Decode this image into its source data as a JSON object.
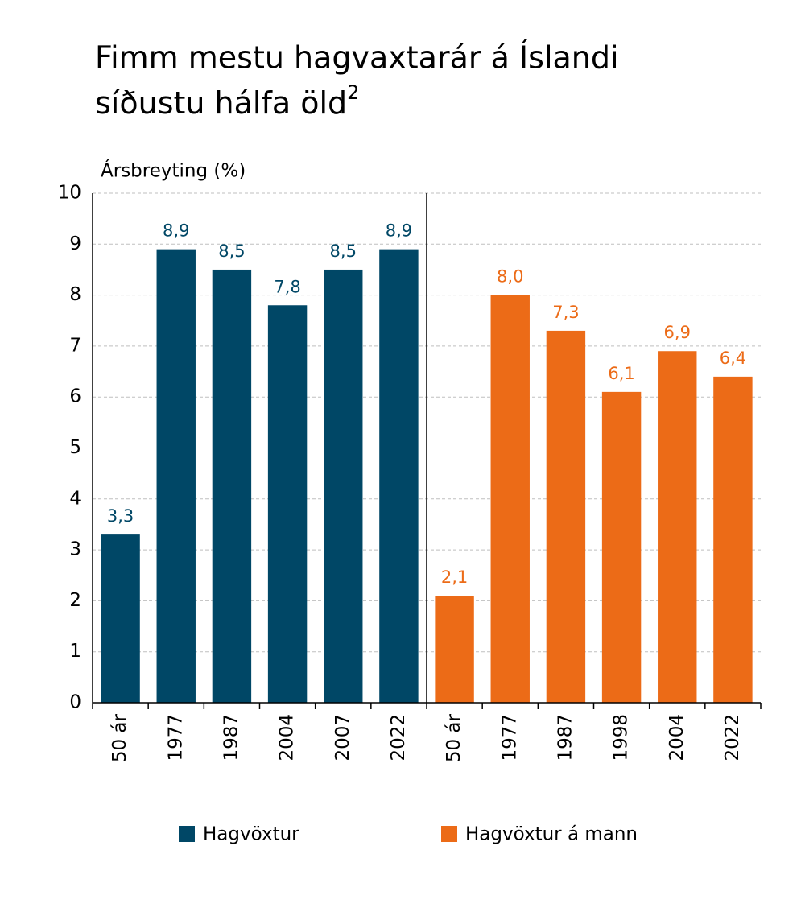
{
  "chart_data": {
    "type": "bar",
    "title": [
      "Fimm mestu hagvaxtarár á Íslandi",
      "síðustu hálfa öld"
    ],
    "title_note": "2",
    "y_label": "Ársbreyting (%)",
    "categories": [
      "50 ár",
      "1977",
      "1987",
      "2004",
      "2007",
      "2022",
      "50 ár",
      "1977",
      "1987",
      "1998",
      "2004",
      "2022"
    ],
    "series": [
      {
        "name": "Hagvöxtur",
        "color": "#004766",
        "values": [
          3.3,
          8.9,
          8.5,
          7.8,
          8.5,
          8.9,
          null,
          null,
          null,
          null,
          null,
          null
        ],
        "value_labels": [
          "3,3",
          "8,9",
          "8,5",
          "7,8",
          "8,5",
          "8,9",
          null,
          null,
          null,
          null,
          null,
          null
        ]
      },
      {
        "name": "Hagvöxtur á mann",
        "color": "#ec6b17",
        "values": [
          null,
          null,
          null,
          null,
          null,
          null,
          2.1,
          8.0,
          7.3,
          6.1,
          6.9,
          6.4
        ],
        "value_labels": [
          null,
          null,
          null,
          null,
          null,
          null,
          "2,1",
          "8,0",
          "7,3",
          "6,1",
          "6,9",
          "6,4"
        ]
      }
    ],
    "ylim": [
      0,
      10
    ],
    "yticks": [
      0,
      1,
      2,
      3,
      4,
      5,
      6,
      7,
      8,
      9,
      10
    ],
    "grid": true
  }
}
